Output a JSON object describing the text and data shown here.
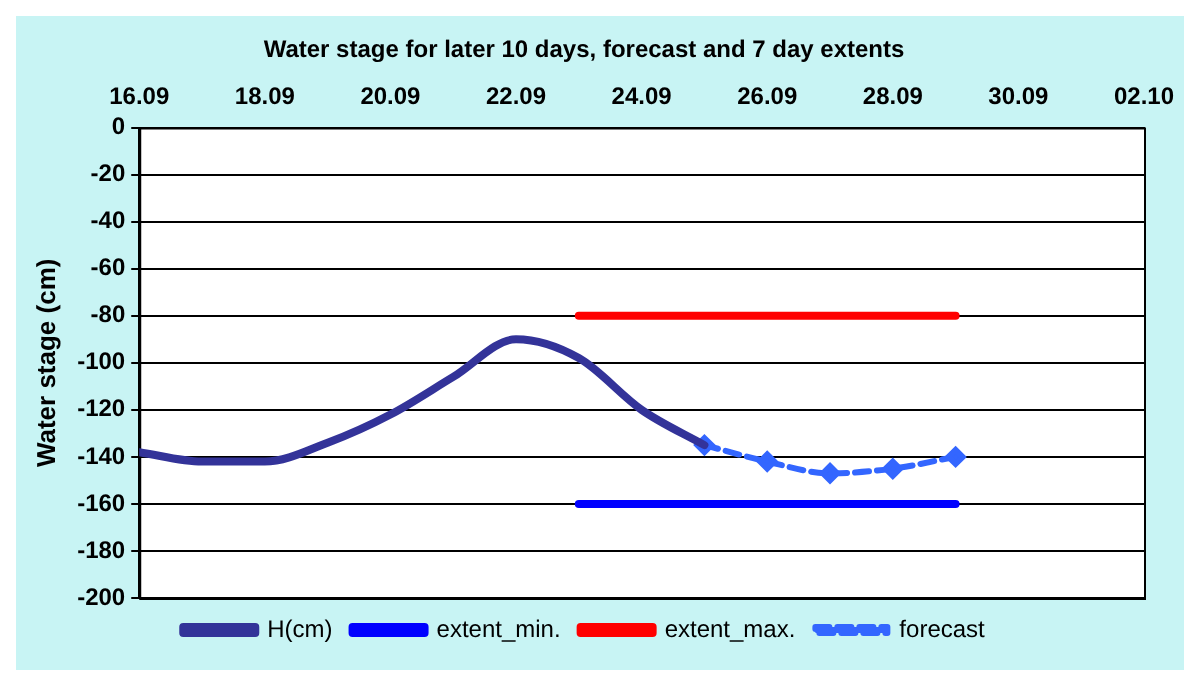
{
  "chart_data": {
    "type": "line",
    "title": "Water stage for later 10 days, forecast and 7 day extents",
    "ylabel": "Water stage (cm)",
    "xlim": [
      "--09-16",
      "--10-02"
    ],
    "xticks": [
      {
        "value": "--09-16",
        "label": "16.09"
      },
      {
        "value": "--09-18",
        "label": "18.09"
      },
      {
        "value": "--09-20",
        "label": "20.09"
      },
      {
        "value": "--09-22",
        "label": "22.09"
      },
      {
        "value": "--09-24",
        "label": "24.09"
      },
      {
        "value": "--09-26",
        "label": "26.09"
      },
      {
        "value": "--09-28",
        "label": "28.09"
      },
      {
        "value": "--09-30",
        "label": "30.09"
      },
      {
        "value": "--10-02",
        "label": "02.10"
      }
    ],
    "ylim": [
      -200,
      0
    ],
    "yticks": [
      -200,
      -180,
      -160,
      -140,
      -120,
      -100,
      -80,
      -60,
      -40,
      -20,
      0
    ],
    "grid": "y",
    "legend": "bottom",
    "series": [
      {
        "name": "H(cm)",
        "color": "#333399",
        "marker": "none",
        "x": [
          "--09-16",
          "--09-17",
          "--09-18",
          "--09-19",
          "--09-20",
          "--09-21",
          "--09-22",
          "--09-23",
          "--09-24",
          "--09-25"
        ],
        "values": [
          -138,
          -142,
          -142,
          -134,
          -122,
          -106,
          -90,
          -98,
          -120,
          -135
        ]
      },
      {
        "name": "extent_min.",
        "color": "#0000ff",
        "marker": "none",
        "x": [
          "--09-23",
          "--09-29"
        ],
        "values": [
          -160,
          -160
        ]
      },
      {
        "name": "extent_max.",
        "color": "#ff0000",
        "marker": "none",
        "x": [
          "--09-23",
          "--09-29"
        ],
        "values": [
          -80,
          -80
        ]
      },
      {
        "name": "forecast",
        "color": "#3366ff",
        "marker": "diamond",
        "line_style": "dashed",
        "x": [
          "--09-25",
          "--09-26",
          "--09-27",
          "--09-28",
          "--09-29"
        ],
        "values": [
          -135,
          -142,
          -147,
          -145,
          -140
        ]
      }
    ]
  }
}
